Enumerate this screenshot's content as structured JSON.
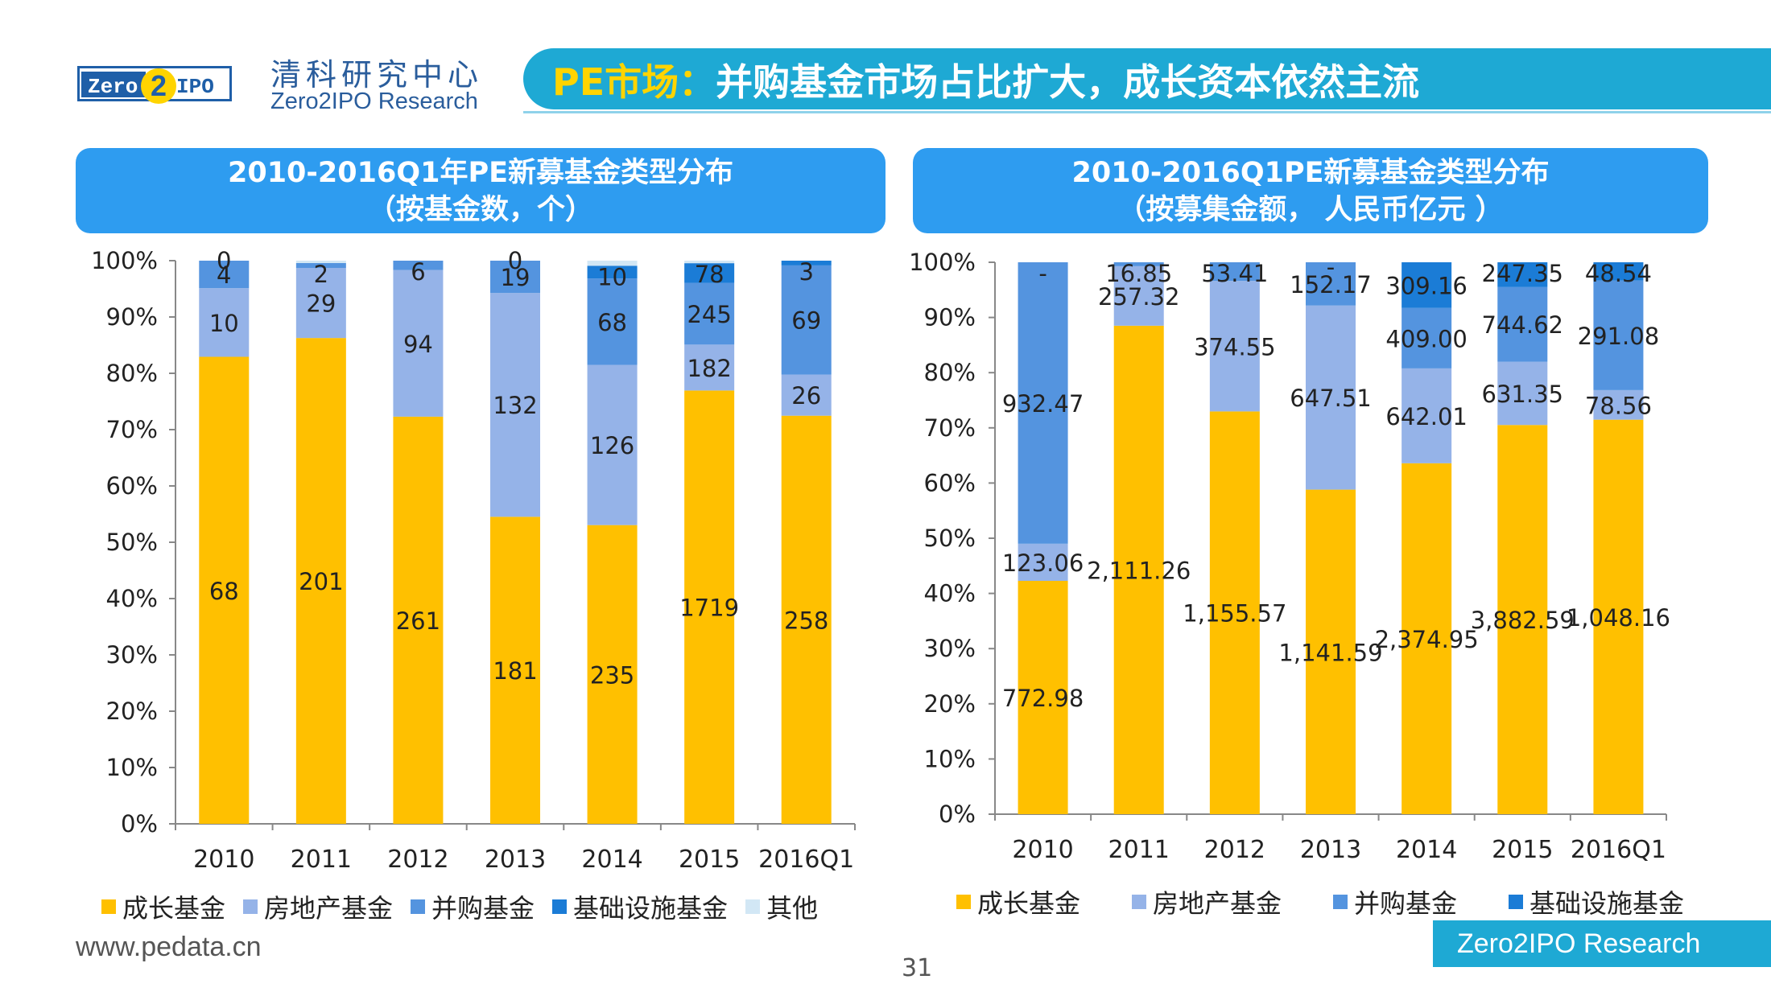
{
  "header": {
    "logo_text_left": "Zero",
    "logo_text_right": "IPO",
    "brand_cn": "清科研究中心",
    "brand_en": "Zero2IPO Research",
    "title_highlight": "PE市场：",
    "title_rest": "并购基金市场占比扩大，成长资本依然主流"
  },
  "colors": {
    "growth": "#FFC000",
    "real_estate": "#95B3E8",
    "buyout": "#5494DF",
    "infrastructure": "#1B7CD6",
    "other": "#D2E7F5",
    "title_bar": "#1EA9D4",
    "title_highlight": "#FFD400",
    "panel": "#2E9CF0"
  },
  "chart_data": [
    {
      "type": "bar",
      "stacked": "percent",
      "title_line1": "2010-2016Q1年PE新募基金类型分布",
      "title_line2": "（按基金数，个）",
      "categories": [
        "2010",
        "2011",
        "2012",
        "2013",
        "2014",
        "2015",
        "2016Q1"
      ],
      "yticks": [
        "0%",
        "10%",
        "20%",
        "30%",
        "40%",
        "50%",
        "60%",
        "70%",
        "80%",
        "90%",
        "100%"
      ],
      "ylim": [
        0,
        100
      ],
      "series": [
        {
          "name": "成长基金",
          "values": [
            68,
            201,
            261,
            181,
            235,
            1719,
            258
          ],
          "labels": [
            "68",
            "201",
            "261",
            "181",
            "235",
            "1719",
            "258"
          ]
        },
        {
          "name": "房地产基金",
          "values": [
            10,
            29,
            94,
            132,
            126,
            182,
            26
          ],
          "labels": [
            "10",
            "29",
            "94",
            "132",
            "126",
            "182",
            "26"
          ]
        },
        {
          "name": "并购基金",
          "values": [
            4,
            2,
            6,
            19,
            68,
            245,
            69
          ],
          "labels": [
            "4",
            "2",
            "6",
            "19",
            "68",
            "245",
            "69"
          ]
        },
        {
          "name": "基础设施基金",
          "values": [
            0,
            0,
            0,
            0,
            10,
            78,
            3
          ],
          "labels": [
            "",
            "",
            "",
            "",
            "10",
            "78",
            "3"
          ]
        },
        {
          "name": "其他",
          "values": [
            0,
            1,
            0,
            0,
            4,
            10,
            0
          ],
          "labels": [
            "0",
            "",
            "",
            "0",
            "",
            "",
            ""
          ]
        }
      ],
      "legend": [
        "成长基金",
        "房地产基金",
        "并购基金",
        "基础设施基金",
        "其他"
      ]
    },
    {
      "type": "bar",
      "stacked": "percent",
      "title_line1": "2010-2016Q1PE新募基金类型分布",
      "title_line2": "（按募集金额， 人民币亿元 ）",
      "categories": [
        "2010",
        "2011",
        "2012",
        "2013",
        "2014",
        "2015",
        "2016Q1"
      ],
      "yticks": [
        "0%",
        "10%",
        "20%",
        "30%",
        "40%",
        "50%",
        "60%",
        "70%",
        "80%",
        "90%",
        "100%"
      ],
      "ylim": [
        0,
        100
      ],
      "series": [
        {
          "name": "成长基金",
          "values": [
            772.98,
            2111.26,
            1155.57,
            1141.59,
            2374.95,
            3882.59,
            1048.16
          ],
          "labels": [
            "772.98",
            "2,111.26",
            "1,155.57",
            "1,141.59",
            "2,374.95",
            "3,882.59",
            "1,048.16"
          ]
        },
        {
          "name": "房地产基金",
          "values": [
            123.06,
            257.32,
            374.55,
            647.51,
            642.01,
            631.35,
            78.56
          ],
          "labels": [
            "123.06",
            "257.32",
            "374.55",
            "647.51",
            "642.01",
            "631.35",
            "78.56"
          ]
        },
        {
          "name": "并购基金",
          "values": [
            932.47,
            16.85,
            53.41,
            152.17,
            409.0,
            744.62,
            291.08
          ],
          "labels": [
            "932.47",
            "16.85",
            "53.41",
            "152.17",
            "409.00",
            "744.62",
            "291.08"
          ]
        },
        {
          "name": "基础设施基金",
          "values": [
            0,
            0,
            0,
            0,
            309.16,
            247.35,
            48.54
          ],
          "labels": [
            "-",
            "",
            "",
            "-",
            "309.16",
            "247.35",
            "48.54"
          ]
        }
      ],
      "legend": [
        "成长基金",
        "房地产基金",
        "并购基金",
        "基础设施基金"
      ]
    }
  ],
  "footer": {
    "url": "www.pedata.cn",
    "page": "31",
    "brand": "Zero2IPO Research"
  }
}
